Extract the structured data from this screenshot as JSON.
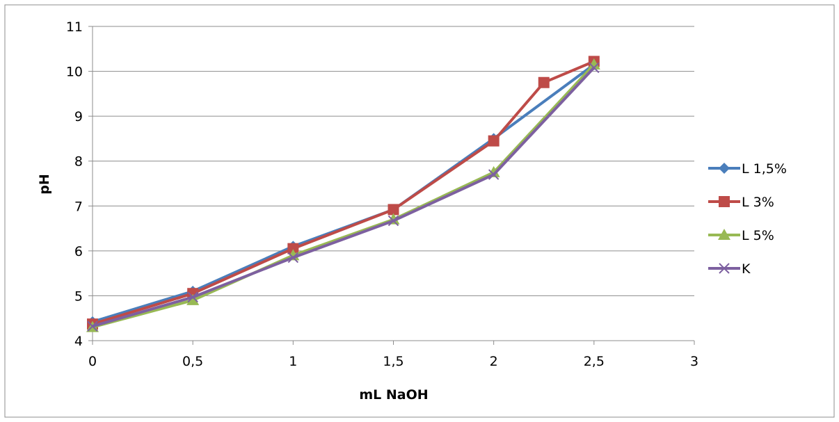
{
  "chart_data": {
    "type": "line",
    "title": "",
    "xlabel": "mL NaOH",
    "ylabel": "pH",
    "xlim": [
      0,
      3
    ],
    "ylim": [
      4,
      11
    ],
    "x_ticks": [
      "0",
      "0,5",
      "1",
      "1,5",
      "2",
      "2,5",
      "3"
    ],
    "y_ticks": [
      "4",
      "5",
      "6",
      "7",
      "8",
      "9",
      "10",
      "11"
    ],
    "grid": "horizontal",
    "legend_position": "right",
    "series": [
      {
        "name": "L 1,5%",
        "color": "#4a7ebb",
        "marker": "diamond",
        "x": [
          0,
          0.5,
          1,
          1.5,
          2,
          2.5
        ],
        "y": [
          4.42,
          5.1,
          6.1,
          6.92,
          8.5,
          10.15
        ]
      },
      {
        "name": "L 3%",
        "color": "#be4b48",
        "marker": "square",
        "x": [
          0,
          0.5,
          1,
          1.5,
          2,
          2.25,
          2.5
        ],
        "y": [
          4.37,
          5.05,
          6.05,
          6.92,
          8.45,
          9.75,
          10.22
        ]
      },
      {
        "name": "L 5%",
        "color": "#98b954",
        "marker": "triangle",
        "x": [
          0,
          0.5,
          1,
          1.5,
          2,
          2.5
        ],
        "y": [
          4.3,
          4.9,
          5.9,
          6.7,
          7.75,
          10.15
        ]
      },
      {
        "name": "K",
        "color": "#7d60a0",
        "marker": "x",
        "x": [
          0,
          0.5,
          1,
          1.5,
          2,
          2.5
        ],
        "y": [
          4.32,
          4.97,
          5.85,
          6.67,
          7.7,
          10.08
        ]
      }
    ]
  }
}
